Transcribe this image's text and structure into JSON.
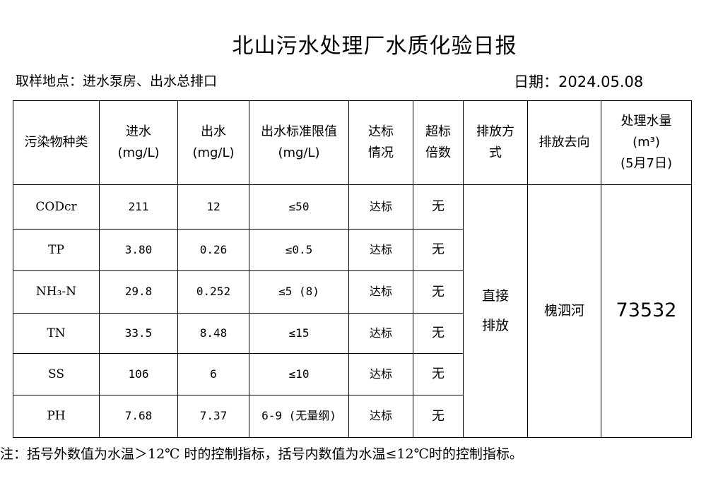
{
  "title": "北山污水处理厂水质化验日报",
  "location": "取样地点：进水泵房、出水总排口",
  "date": "日期：2024.05.08",
  "headers": {
    "pollutant": "污染物种类",
    "influent": [
      "进水",
      "(mg/L)"
    ],
    "effluent": [
      "出水",
      "(mg/L)"
    ],
    "limit": [
      "出水标准限值",
      "(mg/L)"
    ],
    "compliance": [
      "达标",
      "情况"
    ],
    "exceed": [
      "超标",
      "倍数"
    ],
    "discharge_mode": [
      "排放方",
      "式"
    ],
    "destination": "排放去向",
    "volume": [
      "处理水量",
      "(m³)",
      "(5月7日)"
    ]
  },
  "rows": [
    {
      "pollutant": "CODcr",
      "influent": "211",
      "effluent": "12",
      "limit": "≤50",
      "compliance": "达标",
      "exceed": "无"
    },
    {
      "pollutant": "TP",
      "influent": "3.80",
      "effluent": "0.26",
      "limit": "≤0.5",
      "compliance": "达标",
      "exceed": "无"
    },
    {
      "pollutant": "NH₃-N",
      "influent": "29.8",
      "effluent": "0.252",
      "limit": "≤5 (8)",
      "compliance": "达标",
      "exceed": "无"
    },
    {
      "pollutant": "TN",
      "influent": "33.5",
      "effluent": "8.48",
      "limit": "≤15",
      "compliance": "达标",
      "exceed": "无"
    },
    {
      "pollutant": "SS",
      "influent": "106",
      "effluent": "6",
      "limit": "≤10",
      "compliance": "达标",
      "exceed": "无"
    },
    {
      "pollutant": "PH",
      "influent": "7.68",
      "effluent": "7.37",
      "limit": "6-9 (无量纲)",
      "compliance": "达标",
      "exceed": "无"
    }
  ],
  "merged": {
    "discharge_mode": [
      "直接",
      "排放"
    ],
    "destination": "槐泗河",
    "volume": "73532"
  },
  "note": "注：括号外数值为水温＞12℃ 时的控制指标，括号内数值为水温≤12℃时的控制指标。"
}
